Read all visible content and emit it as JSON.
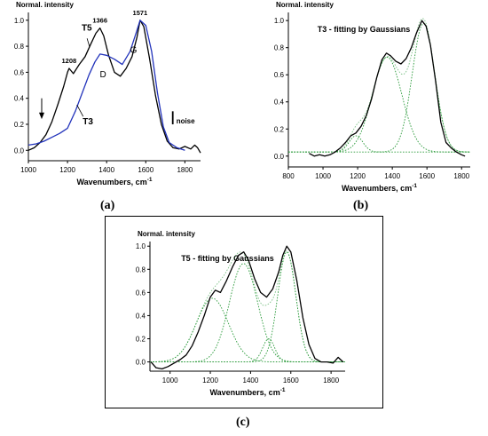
{
  "figure": {
    "labels": [
      "(a)",
      "(b)",
      "(c)"
    ]
  },
  "chart_data": [
    {
      "type": "line",
      "panel": "(a)",
      "ylabel": "Normal. intensity",
      "xlabel": "Wavenumbers, cm",
      "xlabel_sup": "-1",
      "xlim": [
        1000,
        1880
      ],
      "ylim": [
        -0.08,
        1.06
      ],
      "xticks": [
        1000,
        1200,
        1400,
        1600,
        1800
      ],
      "yticks": [
        0.0,
        0.2,
        0.4,
        0.6,
        0.8,
        1.0
      ],
      "ytick_labels": [
        "0.0",
        "0.2",
        "0.4",
        "0.6",
        "0.8",
        "1.0"
      ],
      "series": [
        {
          "name": "T5",
          "color": "#000000",
          "x": [
            1000,
            1030,
            1060,
            1090,
            1120,
            1150,
            1180,
            1200,
            1208,
            1230,
            1260,
            1290,
            1320,
            1345,
            1366,
            1385,
            1410,
            1440,
            1470,
            1500,
            1530,
            1555,
            1571,
            1590,
            1620,
            1650,
            1680,
            1710,
            1740,
            1770,
            1800,
            1830,
            1850,
            1865,
            1880
          ],
          "values": [
            0.0,
            0.02,
            0.06,
            0.12,
            0.22,
            0.35,
            0.49,
            0.6,
            0.63,
            0.59,
            0.66,
            0.72,
            0.82,
            0.9,
            0.94,
            0.88,
            0.73,
            0.6,
            0.57,
            0.63,
            0.72,
            0.87,
            1.0,
            0.95,
            0.7,
            0.42,
            0.2,
            0.07,
            0.02,
            0.01,
            0.03,
            0.01,
            0.04,
            0.02,
            -0.02
          ]
        },
        {
          "name": "T3",
          "color": "#2233bb",
          "x": [
            1000,
            1040,
            1080,
            1120,
            1160,
            1200,
            1240,
            1280,
            1310,
            1340,
            1366,
            1400,
            1440,
            1480,
            1520,
            1550,
            1571,
            1600,
            1630,
            1660,
            1690,
            1720,
            1760,
            1800
          ],
          "values": [
            0.04,
            0.05,
            0.07,
            0.1,
            0.13,
            0.17,
            0.3,
            0.46,
            0.58,
            0.68,
            0.74,
            0.73,
            0.7,
            0.66,
            0.76,
            0.9,
            1.0,
            0.96,
            0.76,
            0.44,
            0.18,
            0.06,
            0.02,
            0.0
          ]
        }
      ],
      "annotations": {
        "peak_1208": "1208",
        "peak_1366": "1366",
        "peak_1571": "1571",
        "band_d": "D",
        "band_g": "G",
        "noise": "noise"
      },
      "noise_bar": {
        "x": 1738,
        "y_low": 0.2,
        "y_high": 0.3
      },
      "arrow_x": 1068
    },
    {
      "type": "line",
      "panel": "(b)",
      "title": "T3 - fitting by Gaussians",
      "ylabel": "Normal. intensity",
      "xlabel": "Wavenumbers,  cm",
      "xlabel_sup": "-1",
      "xlim": [
        800,
        1850
      ],
      "ylim": [
        -0.08,
        1.06
      ],
      "xticks": [
        800,
        1000,
        1200,
        1400,
        1600,
        1800
      ],
      "yticks": [
        0.0,
        0.2,
        0.4,
        0.6,
        0.8,
        1.0
      ],
      "ytick_labels": [
        "0.0",
        "0.2",
        "0.4",
        "0.6",
        "0.8",
        "1.0"
      ],
      "series": [
        {
          "name": "T3",
          "color": "#000000",
          "x": [
            920,
            950,
            980,
            1010,
            1040,
            1070,
            1100,
            1130,
            1160,
            1190,
            1220,
            1250,
            1280,
            1310,
            1340,
            1366,
            1390,
            1420,
            1450,
            1480,
            1510,
            1540,
            1571,
            1595,
            1620,
            1650,
            1680,
            1710,
            1740,
            1770,
            1800,
            1820
          ],
          "values": [
            0.02,
            0.0,
            0.01,
            0.0,
            0.01,
            0.03,
            0.06,
            0.1,
            0.15,
            0.17,
            0.22,
            0.3,
            0.42,
            0.58,
            0.71,
            0.76,
            0.74,
            0.7,
            0.68,
            0.72,
            0.8,
            0.91,
            1.0,
            0.96,
            0.82,
            0.55,
            0.25,
            0.1,
            0.06,
            0.03,
            0.01,
            0.0
          ]
        }
      ],
      "gaussians": [
        {
          "center": 1190,
          "amplitude": 0.12,
          "width": 40
        },
        {
          "center": 1370,
          "amplitude": 0.7,
          "width": 85
        },
        {
          "center": 1580,
          "amplitude": 0.95,
          "width": 65
        }
      ],
      "baseline": 0.03,
      "fit_color": "#2a9a3a"
    },
    {
      "type": "line",
      "panel": "(c)",
      "title": "T5 - fitting by Gaussians",
      "ylabel": "Normal. intensity",
      "xlabel": "Wavenumbers,  cm",
      "xlabel_sup": "-1",
      "xlim": [
        900,
        1870
      ],
      "ylim": [
        -0.08,
        1.04
      ],
      "xticks": [
        1000,
        1200,
        1400,
        1600,
        1800
      ],
      "yticks": [
        0.0,
        0.2,
        0.4,
        0.6,
        0.8,
        1.0
      ],
      "ytick_labels": [
        "0.0",
        "0.2",
        "0.4",
        "0.6",
        "0.8",
        "1.0"
      ],
      "series": [
        {
          "name": "T5",
          "color": "#000000",
          "x": [
            905,
            930,
            960,
            990,
            1020,
            1050,
            1080,
            1110,
            1140,
            1170,
            1200,
            1225,
            1250,
            1280,
            1310,
            1340,
            1366,
            1390,
            1420,
            1450,
            1480,
            1510,
            1540,
            1560,
            1580,
            1600,
            1630,
            1660,
            1690,
            1720,
            1750,
            1780,
            1810,
            1835,
            1860
          ],
          "values": [
            0.0,
            -0.05,
            -0.06,
            -0.04,
            -0.01,
            0.02,
            0.06,
            0.14,
            0.26,
            0.4,
            0.56,
            0.62,
            0.6,
            0.7,
            0.82,
            0.92,
            0.95,
            0.88,
            0.72,
            0.6,
            0.56,
            0.63,
            0.78,
            0.92,
            1.0,
            0.95,
            0.7,
            0.38,
            0.15,
            0.03,
            0.0,
            0.0,
            -0.01,
            0.04,
            0.0
          ]
        }
      ],
      "gaussians": [
        {
          "center": 1210,
          "amplitude": 0.55,
          "width": 80
        },
        {
          "center": 1365,
          "amplitude": 0.85,
          "width": 70
        },
        {
          "center": 1490,
          "amplitude": 0.2,
          "width": 30
        },
        {
          "center": 1580,
          "amplitude": 0.95,
          "width": 45
        }
      ],
      "baseline": 0.0,
      "fit_color": "#2a9a3a"
    }
  ]
}
